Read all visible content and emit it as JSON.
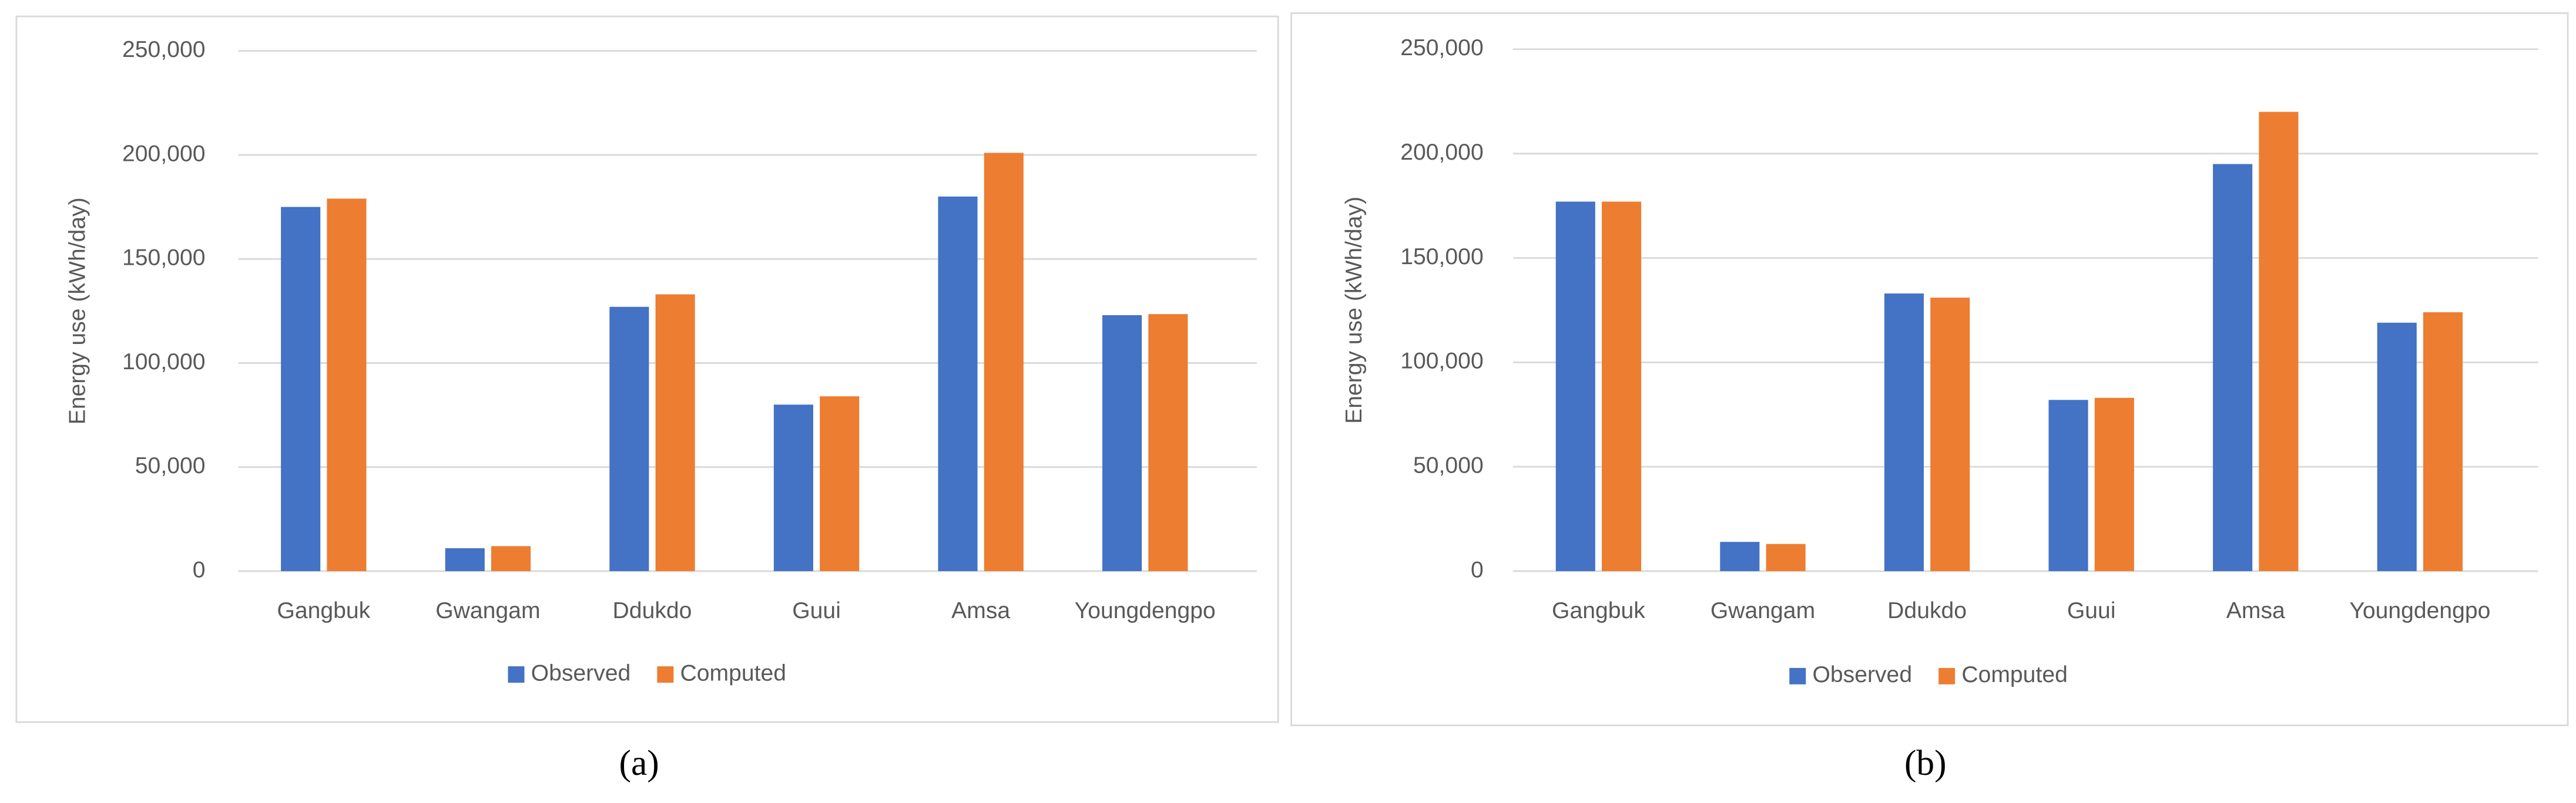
{
  "chart_data": [
    {
      "type": "bar",
      "label": "(a)",
      "y_label": "Energy use (kWh/day)",
      "categories": [
        "Gangbuk",
        "Gwangam",
        "Ddukdo",
        "Guui",
        "Amsa",
        "Youngdengpo"
      ],
      "series": [
        {
          "name": "Observed",
          "color": "#4472c4",
          "values": [
            175000,
            11000,
            127000,
            80000,
            180000,
            123000
          ]
        },
        {
          "name": "Computed",
          "color": "#ed7d31",
          "values": [
            179000,
            12000,
            133000,
            84000,
            201000,
            123500
          ]
        }
      ],
      "ylim": [
        0,
        250000
      ],
      "yticks": [
        0,
        {
          "value": 50000,
          "label": "50,000"
        },
        {
          "value": 100000,
          "label": "100,000"
        },
        {
          "value": 150000,
          "label": "150,000"
        },
        {
          "value": 200000,
          "label": "200,000"
        },
        {
          "value": 250000,
          "label": "250,000"
        }
      ],
      "grid": true,
      "legend": "bottom"
    },
    {
      "type": "bar",
      "label": "(b)",
      "y_label": "Energy use (kWh/day)",
      "categories": [
        "Gangbuk",
        "Gwangam",
        "Ddukdo",
        "Guui",
        "Amsa",
        "Youngdengpo"
      ],
      "series": [
        {
          "name": "Observed",
          "color": "#4472c4",
          "values": [
            177000,
            14000,
            133000,
            82000,
            195000,
            119000
          ]
        },
        {
          "name": "Computed",
          "color": "#ed7d31",
          "values": [
            177000,
            13000,
            131000,
            83000,
            220000,
            124000
          ]
        }
      ],
      "ylim": [
        0,
        250000
      ],
      "yticks": [
        0,
        {
          "value": 50000,
          "label": "50,000"
        },
        {
          "value": 100000,
          "label": "100,000"
        },
        {
          "value": 150000,
          "label": "150,000"
        },
        {
          "value": 200000,
          "label": "200,000"
        },
        {
          "value": 250000,
          "label": "250,000"
        }
      ],
      "grid": true,
      "legend": "bottom"
    }
  ]
}
